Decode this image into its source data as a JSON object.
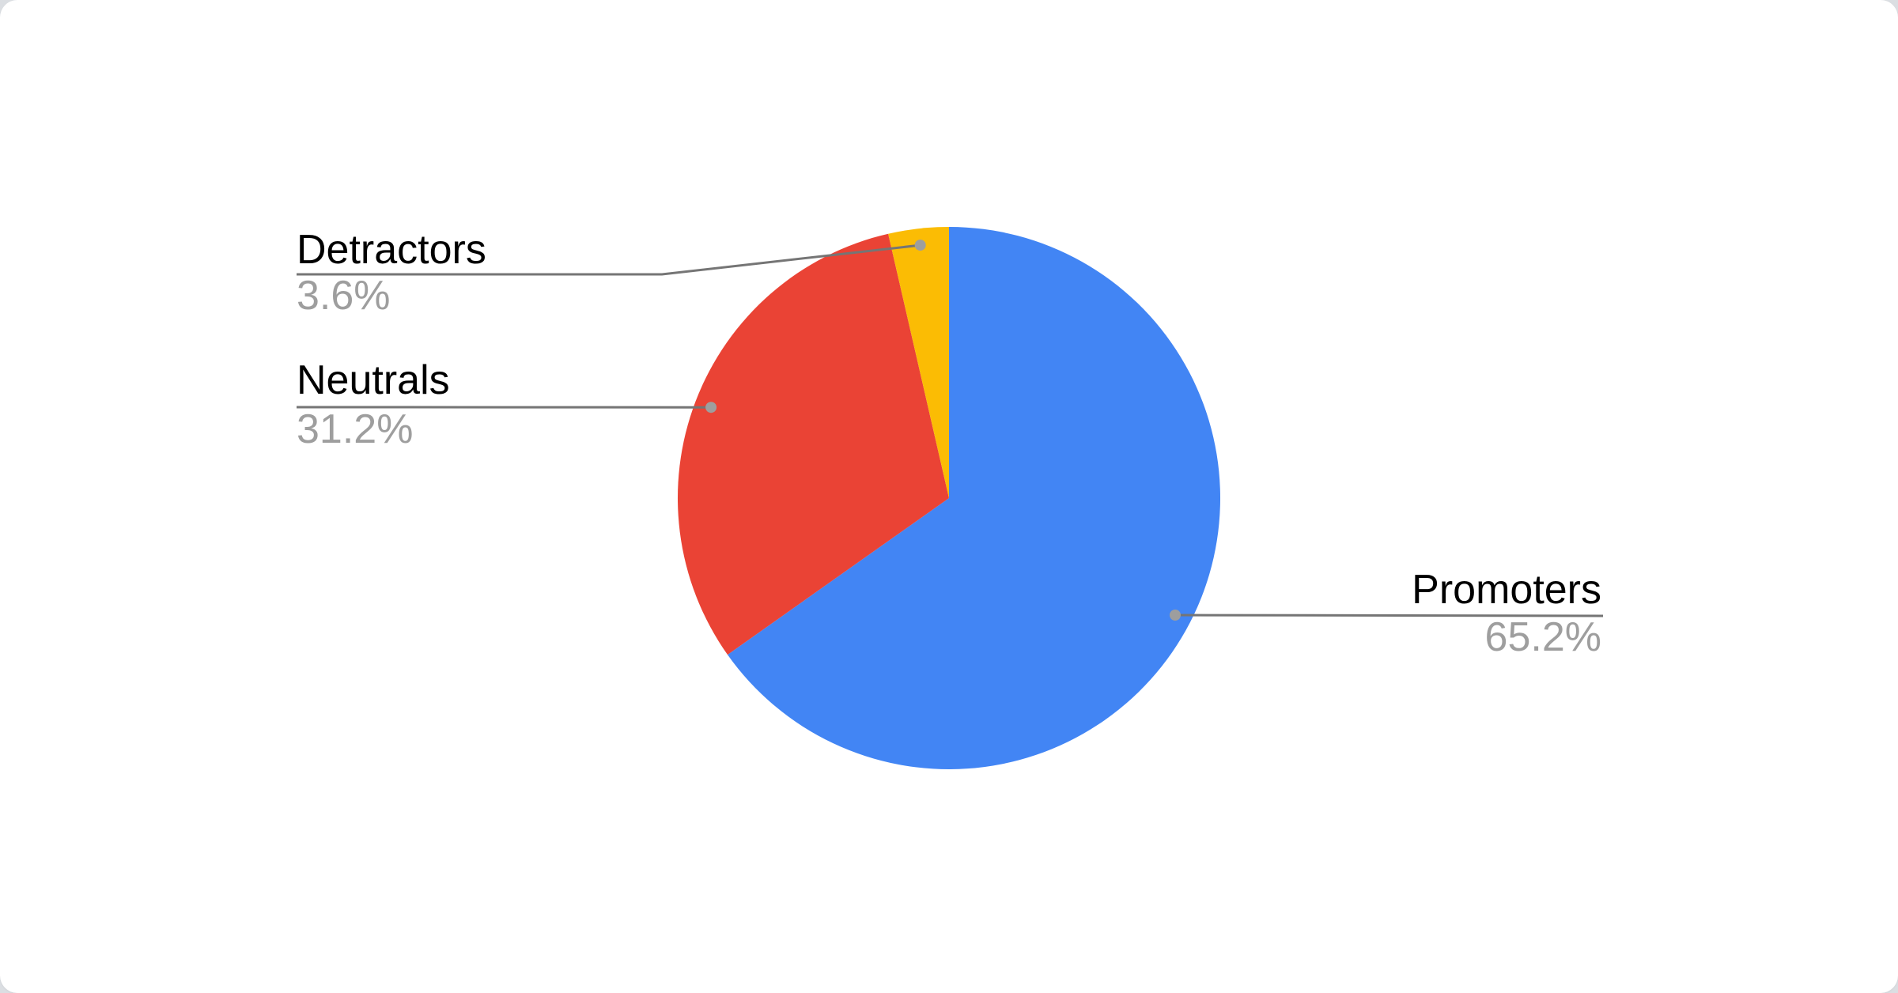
{
  "page": {
    "background_color": "#dbdee2",
    "card_background_color": "#ffffff"
  },
  "chart_data": {
    "type": "pie",
    "title": "",
    "legend_position": "labeled-callouts",
    "direction": "clockwise",
    "start_angle_deg": 0,
    "categories": [
      "Promoters",
      "Neutrals",
      "Detractors"
    ],
    "values": [
      65.2,
      31.2,
      3.6
    ],
    "slices": [
      {
        "label": "Promoters",
        "value_pct": 65.2,
        "display_pct": "65.2%",
        "color": "#4285F4"
      },
      {
        "label": "Neutrals",
        "value_pct": 31.2,
        "display_pct": "31.2%",
        "color": "#EA4335"
      },
      {
        "label": "Detractors",
        "value_pct": 3.6,
        "display_pct": "3.6%",
        "color": "#FBBC04"
      }
    ],
    "label_text_color": "#000000",
    "pct_text_color": "#9e9e9e",
    "leader_line_color": "#757575",
    "leader_dot_color": "#9e9e9e"
  }
}
